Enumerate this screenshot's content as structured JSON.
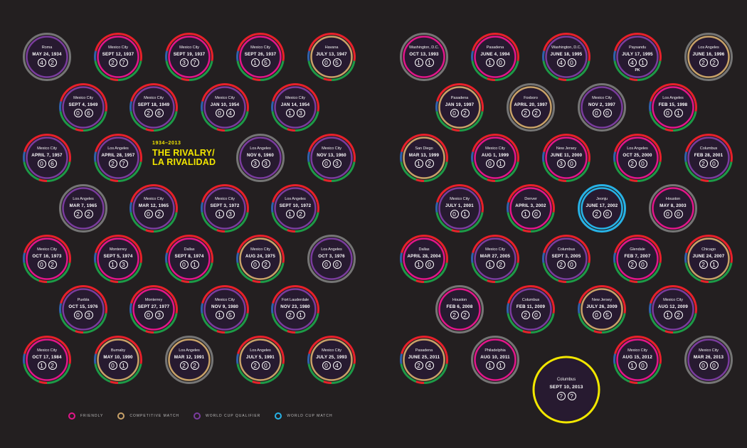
{
  "title": {
    "years": "1934–2013",
    "line1": "THE RIVALRY/",
    "line2": "LA RIVALIDAD"
  },
  "colors": {
    "background": "#231f20",
    "usa_red": "#e8202a",
    "usa_blue": "#2f61ad",
    "mexico_green": "#1d9a47",
    "friendly": "#e2168a",
    "competitive": "#c8a168",
    "wc_qualifier": "#7a3c9e",
    "wc_match": "#27b2e6",
    "gray": "#757575",
    "upcoming": "#f2e600"
  },
  "legend": [
    {
      "key": "friendly",
      "label": "FRIENDLY",
      "color": "#e2168a"
    },
    {
      "key": "competitive",
      "label": "COMPETITIVE MATCH",
      "color": "#c8a168"
    },
    {
      "key": "qualifier",
      "label": "WORLD CUP QUALIFIER",
      "color": "#7a3c9e"
    },
    {
      "key": "wcmatch",
      "label": "WORLD CUP MATCH",
      "color": "#27b2e6"
    }
  ],
  "matches": [
    {
      "city": "Roma",
      "date": "MAY 24, 1934",
      "usa": "4",
      "mex": "2",
      "type": "wcmatch",
      "ring": "gray",
      "inner": "qualifier"
    },
    {
      "city": "Mexico City",
      "date": "SEPT 12, 1937",
      "usa": "2",
      "mex": "7",
      "type": "friendly",
      "ring": "usa",
      "inner": "friendly"
    },
    {
      "city": "Mexico City",
      "date": "SEPT 19, 1937",
      "usa": "3",
      "mex": "7",
      "type": "friendly",
      "ring": "usa",
      "inner": "friendly"
    },
    {
      "city": "Mexico City",
      "date": "SEPT 26, 1937",
      "usa": "1",
      "mex": "5",
      "type": "friendly",
      "ring": "usa",
      "inner": "friendly"
    },
    {
      "city": "Havana",
      "date": "JULY 13, 1947",
      "usa": "0",
      "mex": "5",
      "type": "competitive",
      "ring": "usa",
      "inner": "competitive"
    },
    {
      "city": "Mexico City",
      "date": "SEPT 4, 1949",
      "usa": "0",
      "mex": "6",
      "type": "qualifier",
      "ring": "usa",
      "inner": "qualifier"
    },
    {
      "city": "Mexico City",
      "date": "SEPT 18, 1949",
      "usa": "2",
      "mex": "6",
      "type": "qualifier",
      "ring": "usa",
      "inner": "qualifier"
    },
    {
      "city": "Mexico City",
      "date": "JAN 10, 1954",
      "usa": "0",
      "mex": "4",
      "type": "qualifier",
      "ring": "usa",
      "inner": "qualifier"
    },
    {
      "city": "Mexico City",
      "date": "JAN 14, 1954",
      "usa": "1",
      "mex": "3",
      "type": "qualifier",
      "ring": "usa",
      "inner": "qualifier"
    },
    {
      "city": "Mexico City",
      "date": "APRIL 7, 1957",
      "usa": "0",
      "mex": "6",
      "type": "qualifier",
      "ring": "usa",
      "inner": "qualifier"
    },
    {
      "city": "Los Angeles",
      "date": "APRIL 28, 1957",
      "usa": "2",
      "mex": "7",
      "type": "qualifier",
      "ring": "usa",
      "inner": "qualifier"
    },
    {
      "city": "Los Angeles",
      "date": "NOV 6, 1960",
      "usa": "3",
      "mex": "3",
      "type": "qualifier",
      "ring": "gray",
      "inner": "qualifier"
    },
    {
      "city": "Mexico City",
      "date": "NOV 13, 1960",
      "usa": "0",
      "mex": "3",
      "type": "qualifier",
      "ring": "usa",
      "inner": "qualifier"
    },
    {
      "city": "Los Angeles",
      "date": "MAR 7, 1965",
      "usa": "2",
      "mex": "2",
      "type": "qualifier",
      "ring": "gray",
      "inner": "qualifier"
    },
    {
      "city": "Mexico City",
      "date": "MAR 12, 1965",
      "usa": "0",
      "mex": "2",
      "type": "qualifier",
      "ring": "usa",
      "inner": "qualifier"
    },
    {
      "city": "Mexico City",
      "date": "SEPT 3, 1972",
      "usa": "1",
      "mex": "3",
      "type": "qualifier",
      "ring": "usa",
      "inner": "qualifier"
    },
    {
      "city": "Los Angeles",
      "date": "SEPT 10, 1972",
      "usa": "1",
      "mex": "2",
      "type": "qualifier",
      "ring": "usa",
      "inner": "qualifier"
    },
    {
      "city": "Mexico City",
      "date": "OCT 16, 1973",
      "usa": "0",
      "mex": "2",
      "type": "friendly",
      "ring": "usa",
      "inner": "friendly"
    },
    {
      "city": "Monterrey",
      "date": "SEPT 5, 1974",
      "usa": "1",
      "mex": "3",
      "type": "friendly",
      "ring": "usa",
      "inner": "friendly"
    },
    {
      "city": "Dallas",
      "date": "SEPT 8, 1974",
      "usa": "0",
      "mex": "1",
      "type": "friendly",
      "ring": "usa",
      "inner": "friendly"
    },
    {
      "city": "Mexico City",
      "date": "AUG 24, 1975",
      "usa": "0",
      "mex": "2",
      "type": "competitive",
      "ring": "usa",
      "inner": "competitive"
    },
    {
      "city": "Los Angeles",
      "date": "OCT 3, 1976",
      "usa": "0",
      "mex": "0",
      "type": "qualifier",
      "ring": "gray",
      "inner": "qualifier"
    },
    {
      "city": "Puebla",
      "date": "OCT 15, 1976",
      "usa": "0",
      "mex": "3",
      "type": "qualifier",
      "ring": "usa",
      "inner": "qualifier"
    },
    {
      "city": "Monterrey",
      "date": "SEPT 27, 1977",
      "usa": "0",
      "mex": "3",
      "type": "friendly",
      "ring": "usa",
      "inner": "friendly"
    },
    {
      "city": "Mexico City",
      "date": "NOV 9, 1980",
      "usa": "1",
      "mex": "5",
      "type": "qualifier",
      "ring": "usa",
      "inner": "qualifier"
    },
    {
      "city": "Fort Lauderdale",
      "date": "NOV 23, 1980",
      "usa": "2",
      "mex": "1",
      "type": "qualifier",
      "ring": "usa",
      "inner": "qualifier"
    },
    {
      "city": "Mexico City",
      "date": "OCT 17, 1984",
      "usa": "1",
      "mex": "2",
      "type": "friendly",
      "ring": "usa",
      "inner": "friendly"
    },
    {
      "city": "Burnaby",
      "date": "MAY 10, 1990",
      "usa": "0",
      "mex": "1",
      "type": "competitive",
      "ring": "usa",
      "inner": "competitive"
    },
    {
      "city": "Los Angeles",
      "date": "MAR 12, 1991",
      "usa": "2",
      "mex": "2",
      "type": "competitive",
      "ring": "gray",
      "inner": "competitive"
    },
    {
      "city": "Los Angeles",
      "date": "JULY 5, 1991",
      "usa": "2",
      "mex": "0",
      "type": "competitive",
      "ring": "usa",
      "inner": "competitive"
    },
    {
      "city": "Mexico City",
      "date": "JULY 25, 1993",
      "usa": "0",
      "mex": "4",
      "type": "competitive",
      "ring": "usa",
      "inner": "competitive"
    },
    {
      "city": "Washington, D.C.",
      "date": "OCT 13, 1993",
      "usa": "1",
      "mex": "1",
      "type": "friendly",
      "ring": "gray",
      "inner": "friendly"
    },
    {
      "city": "Pasadena",
      "date": "JUNE 4, 1994",
      "usa": "1",
      "mex": "0",
      "type": "friendly",
      "ring": "usa",
      "inner": "friendly"
    },
    {
      "city": "Washington, D.C.",
      "date": "JUNE 18, 1995",
      "usa": "4",
      "mex": "0",
      "type": "qualifier",
      "ring": "usa",
      "inner": "qualifier"
    },
    {
      "city": "Paysandu",
      "date": "JULY 17, 1995",
      "usa": "4",
      "mex": "1",
      "note": "PK",
      "type": "qualifier",
      "ring": "usa",
      "inner": "qualifier"
    },
    {
      "city": "Los Angeles",
      "date": "JUNE 16, 1996",
      "usa": "2",
      "mex": "2",
      "type": "competitive",
      "ring": "gray",
      "inner": "competitive"
    },
    {
      "city": "Pasadena",
      "date": "JAN 19, 1997",
      "usa": "0",
      "mex": "2",
      "type": "competitive",
      "ring": "usa",
      "inner": "competitive"
    },
    {
      "city": "Foxboro",
      "date": "APRIL 20, 1997",
      "usa": "2",
      "mex": "2",
      "type": "competitive",
      "ring": "gray",
      "inner": "competitive"
    },
    {
      "city": "Mexico City",
      "date": "NOV 2, 1997",
      "usa": "0",
      "mex": "0",
      "type": "qualifier",
      "ring": "gray",
      "inner": "qualifier"
    },
    {
      "city": "Los Angeles",
      "date": "FEB 15, 1998",
      "usa": "0",
      "mex": "1",
      "type": "friendly",
      "ring": "usa",
      "inner": "friendly"
    },
    {
      "city": "San Diego",
      "date": "MAR 13, 1999",
      "usa": "1",
      "mex": "2",
      "type": "competitive",
      "ring": "usa",
      "inner": "competitive"
    },
    {
      "city": "Mexico City",
      "date": "AUG 1, 1999",
      "usa": "0",
      "mex": "1",
      "type": "friendly",
      "ring": "usa",
      "inner": "friendly"
    },
    {
      "city": "New Jersey",
      "date": "JUNE 11, 2000",
      "usa": "3",
      "mex": "0",
      "type": "friendly",
      "ring": "usa",
      "inner": "friendly"
    },
    {
      "city": "Los Angeles",
      "date": "OCT 25, 2000",
      "usa": "2",
      "mex": "0",
      "type": "friendly",
      "ring": "usa",
      "inner": "friendly"
    },
    {
      "city": "Columbus",
      "date": "FEB 28, 2001",
      "usa": "2",
      "mex": "0",
      "type": "qualifier",
      "ring": "usa",
      "inner": "qualifier"
    },
    {
      "city": "Mexico City",
      "date": "JULY 1, 2001",
      "usa": "0",
      "mex": "1",
      "type": "qualifier",
      "ring": "usa",
      "inner": "qualifier"
    },
    {
      "city": "Denver",
      "date": "APRIL 3, 2002",
      "usa": "1",
      "mex": "0",
      "type": "friendly",
      "ring": "usa",
      "inner": "friendly"
    },
    {
      "city": "Jeonju",
      "date": "JUNE 17, 2002",
      "usa": "2",
      "mex": "0",
      "type": "wcmatch",
      "ring": "wcmatch",
      "inner": "wcmatch"
    },
    {
      "city": "Houston",
      "date": "MAY 8, 2003",
      "usa": "0",
      "mex": "0",
      "type": "friendly",
      "ring": "gray",
      "inner": "friendly"
    },
    {
      "city": "Dallas",
      "date": "APRIL 28, 2004",
      "usa": "1",
      "mex": "0",
      "type": "friendly",
      "ring": "usa",
      "inner": "friendly"
    },
    {
      "city": "Mexico City",
      "date": "MAR 27, 2005",
      "usa": "1",
      "mex": "2",
      "type": "qualifier",
      "ring": "usa",
      "inner": "qualifier"
    },
    {
      "city": "Columbus",
      "date": "SEPT 3, 2005",
      "usa": "2",
      "mex": "0",
      "type": "qualifier",
      "ring": "usa",
      "inner": "qualifier"
    },
    {
      "city": "Glendale",
      "date": "FEB 7, 2007",
      "usa": "2",
      "mex": "0",
      "type": "friendly",
      "ring": "usa",
      "inner": "friendly"
    },
    {
      "city": "Chicago",
      "date": "JUNE 24, 2007",
      "usa": "2",
      "mex": "1",
      "type": "competitive",
      "ring": "usa",
      "inner": "competitive"
    },
    {
      "city": "Houston",
      "date": "FEB 6, 2008",
      "usa": "2",
      "mex": "2",
      "type": "friendly",
      "ring": "gray",
      "inner": "friendly"
    },
    {
      "city": "Columbus",
      "date": "FEB 11, 2009",
      "usa": "2",
      "mex": "0",
      "type": "qualifier",
      "ring": "usa",
      "inner": "qualifier"
    },
    {
      "city": "New Jersey",
      "date": "JULY 26, 2009",
      "usa": "0",
      "mex": "5",
      "type": "competitive",
      "ring": "usa",
      "inner": "competitive"
    },
    {
      "city": "Mexico City",
      "date": "AUG 12, 2009",
      "usa": "1",
      "mex": "2",
      "type": "qualifier",
      "ring": "usa",
      "inner": "qualifier"
    },
    {
      "city": "Pasadena",
      "date": "JUNE 25, 2011",
      "usa": "2",
      "mex": "4",
      "type": "competitive",
      "ring": "usa",
      "inner": "competitive"
    },
    {
      "city": "Philadelphia",
      "date": "AUG 10, 2011",
      "usa": "1",
      "mex": "1",
      "type": "friendly",
      "ring": "gray",
      "inner": "friendly"
    },
    {
      "city": "Columbus",
      "date": "SEPT 10, 2013",
      "usa": "?",
      "mex": "?",
      "type": "upcoming",
      "ring": "upcoming",
      "inner": "upcoming"
    },
    {
      "city": "Mexico City",
      "date": "AUG 15, 2012",
      "usa": "1",
      "mex": "0",
      "type": "friendly",
      "ring": "usa",
      "inner": "friendly"
    },
    {
      "city": "Mexico City",
      "date": "MAR 26, 2013",
      "usa": "0",
      "mex": "0",
      "type": "qualifier",
      "ring": "gray",
      "inner": "qualifier"
    }
  ]
}
